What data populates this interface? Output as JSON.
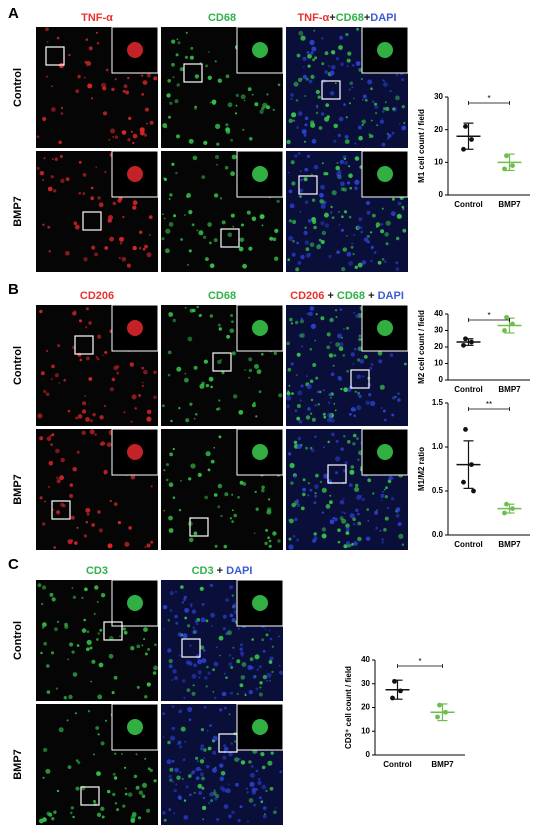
{
  "panels": [
    {
      "letter": "A",
      "rows": [
        "Control",
        "BMP7"
      ],
      "columns": [
        [
          {
            "text": "TNF-α",
            "color": "#e8332f"
          }
        ],
        [
          {
            "text": "CD68",
            "color": "#2fb24a"
          }
        ],
        [
          {
            "text": "TNF-α",
            "color": "#e8332f"
          },
          {
            "text": "+",
            "color": "#222"
          },
          {
            "text": "CD68",
            "color": "#2fb24a"
          },
          {
            "text": "+",
            "color": "#222"
          },
          {
            "text": "DAPI",
            "color": "#3b5bd6"
          }
        ]
      ]
    },
    {
      "letter": "B",
      "rows": [
        "Control",
        "BMP7"
      ],
      "columns": [
        [
          {
            "text": "CD206",
            "color": "#e8332f"
          }
        ],
        [
          {
            "text": "CD68",
            "color": "#2fb24a"
          }
        ],
        [
          {
            "text": "CD206",
            "color": "#e8332f"
          },
          {
            "text": " + ",
            "color": "#222"
          },
          {
            "text": "CD68",
            "color": "#2fb24a"
          },
          {
            "text": " + ",
            "color": "#222"
          },
          {
            "text": "DAPI",
            "color": "#3b5bd6"
          }
        ]
      ]
    },
    {
      "letter": "C",
      "rows": [
        "Control",
        "BMP7"
      ],
      "columns": [
        [
          {
            "text": "CD3",
            "color": "#2fb24a"
          }
        ],
        [
          {
            "text": "CD3",
            "color": "#2fb24a"
          },
          {
            "text": " + ",
            "color": "#222"
          },
          {
            "text": "DAPI",
            "color": "#3b5bd6"
          }
        ]
      ]
    }
  ],
  "chart_data": [
    {
      "type": "dot",
      "ylabel": "M1 cell count / field",
      "categories": [
        "Control",
        "BMP7"
      ],
      "ylim": [
        0,
        30
      ],
      "yticks": [
        0,
        10,
        20,
        30
      ],
      "significance": "*",
      "groups": [
        {
          "color": "#111111",
          "points": [
            21,
            17,
            14
          ],
          "mean": 18,
          "sd": 4
        },
        {
          "color": "#6cbf4a",
          "points": [
            12,
            9,
            8
          ],
          "mean": 10,
          "sd": 2.5
        }
      ]
    },
    {
      "type": "dot",
      "ylabel": "M2 cell count / field",
      "categories": [
        "Control",
        "BMP7"
      ],
      "ylim": [
        0,
        40
      ],
      "yticks": [
        0,
        10,
        20,
        30,
        40
      ],
      "significance": "*",
      "groups": [
        {
          "color": "#111111",
          "points": [
            25,
            23,
            21
          ],
          "mean": 23,
          "sd": 2
        },
        {
          "color": "#6cbf4a",
          "points": [
            38,
            34,
            30
          ],
          "mean": 33,
          "sd": 4.5
        }
      ]
    },
    {
      "type": "dot",
      "ylabel": "M1/M2 ratio",
      "categories": [
        "Control",
        "BMP7"
      ],
      "ylim": [
        0,
        1.5
      ],
      "yticks": [
        {
          "value": 0,
          "label": "0.0"
        },
        {
          "value": 0.5,
          "label": "0.5"
        },
        {
          "value": 1,
          "label": "1.0"
        },
        {
          "value": 1.5,
          "label": "1.5"
        }
      ],
      "significance": "**",
      "groups": [
        {
          "color": "#111111",
          "points": [
            1.2,
            0.8,
            0.6,
            0.5
          ],
          "mean": 0.8,
          "sd": 0.27
        },
        {
          "color": "#6cbf4a",
          "points": [
            0.35,
            0.3,
            0.25
          ],
          "mean": 0.3,
          "sd": 0.05
        }
      ]
    },
    {
      "type": "dot",
      "ylabel": "CD3⁺ cell count / field",
      "categories": [
        "Control",
        "BMP7"
      ],
      "ylim": [
        0,
        40
      ],
      "yticks": [
        0,
        10,
        20,
        30,
        40
      ],
      "significance": "*",
      "groups": [
        {
          "color": "#111111",
          "points": [
            31,
            27,
            24
          ],
          "mean": 27.5,
          "sd": 4
        },
        {
          "color": "#6cbf4a",
          "points": [
            21,
            18,
            16
          ],
          "mean": 18,
          "sd": 3.5
        }
      ]
    }
  ]
}
